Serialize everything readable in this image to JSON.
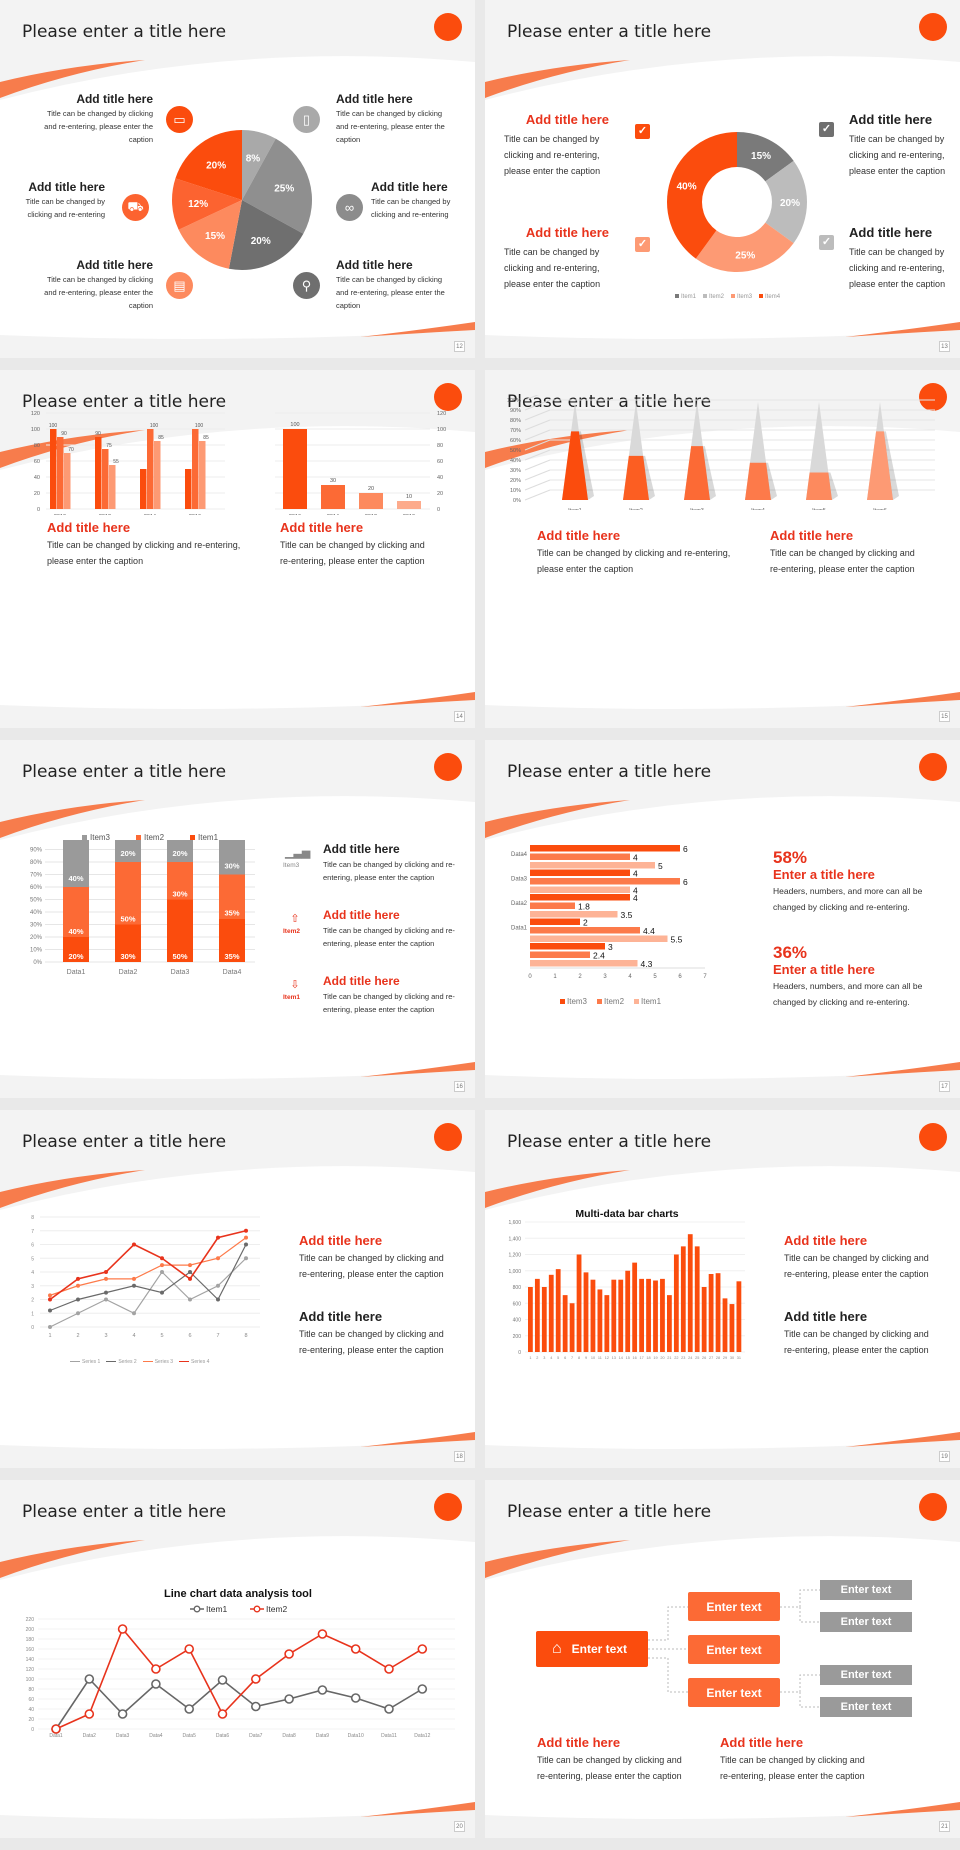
{
  "slide_title": "Please enter a title here",
  "add_title": "Add title here",
  "caption_long": "Title can be changed by clicking and re-entering, please enter the caption",
  "slides": [
    {
      "page": "12",
      "left_items": [
        {
          "title": "Add title here",
          "caption": "Title can be changed by clicking and re-entering, please enter the caption",
          "icon": "monitor-icon",
          "color": "#fb4c0d"
        },
        {
          "title": "Add title here",
          "caption": "Title can be changed by clicking and re-entering",
          "icon": "car-icon",
          "color": "#fc6330"
        },
        {
          "title": "Add title here",
          "caption": "Title can be changed by clicking and re-entering, please enter the caption",
          "icon": "book-icon",
          "color": "#fd8a5e"
        }
      ],
      "right_items": [
        {
          "title": "Add title here",
          "caption": "Title can be changed by clicking and re-entering, please enter the caption",
          "icon": "phone-icon",
          "color": "#a9a9a9"
        },
        {
          "title": "Add title here",
          "caption": "Title can be changed by clicking and re-entering",
          "icon": "binoculars-icon",
          "color": "#8c8c8c"
        },
        {
          "title": "Add title here",
          "caption": "Title can be changed by clicking and re-entering, please enter the caption",
          "icon": "bicycle-icon",
          "color": "#6f6f6f"
        }
      ]
    },
    {
      "page": "13",
      "items": [
        {
          "title": "Add title here",
          "caption": "Title can be changed by clicking and re-entering, please enter the caption"
        },
        {
          "title": "Add title here",
          "caption": "Title can be changed by clicking and re-entering, please enter the caption"
        },
        {
          "title": "Add title here",
          "caption": "Title can be changed by clicking and re-entering, please enter the caption"
        },
        {
          "title": "Add title here",
          "caption": "Title can be changed by clicking and re-entering, please enter the caption"
        }
      ]
    },
    {
      "page": "14",
      "texts": [
        {
          "title": "Add title here",
          "caption": "Title can be changed by clicking and re-entering, please enter the caption"
        },
        {
          "title": "Add title here",
          "caption": "Title can be changed by clicking and re-entering, please enter the caption"
        }
      ]
    },
    {
      "page": "15",
      "texts": [
        {
          "title": "Add title here",
          "caption": "Title can be changed by clicking and re-entering, please enter the caption"
        },
        {
          "title": "Add title here",
          "caption": "Title can be changed by clicking and re-entering, please enter the caption"
        }
      ]
    },
    {
      "page": "16",
      "items": [
        {
          "label": "Item3",
          "title": "Add title here",
          "caption": "Title can be changed by clicking and re-entering, please enter the caption",
          "icon": "bar-chart-icon"
        },
        {
          "label": "Item2",
          "title": "Add title here",
          "caption": "Title can be changed by clicking and re-entering, please enter the caption",
          "icon": "upload-icon"
        },
        {
          "label": "Item1",
          "title": "Add title here",
          "caption": "Title can be changed by clicking and re-entering, please enter the caption",
          "icon": "download-icon"
        }
      ]
    },
    {
      "page": "17",
      "stats": [
        {
          "value": "58%",
          "title": "Enter a title here",
          "caption": "Headers, numbers, and more can all be changed by clicking and re-entering."
        },
        {
          "value": "36%",
          "title": "Enter a title here",
          "caption": "Headers, numbers, and more can all be changed by clicking and re-entering."
        }
      ]
    },
    {
      "page": "18",
      "texts": [
        {
          "title": "Add title here",
          "caption": "Title can be changed by clicking and re-entering, please enter the caption"
        },
        {
          "title": "Add title here",
          "caption": "Title can be changed by clicking and re-entering, please enter the caption"
        }
      ]
    },
    {
      "page": "19",
      "texts": [
        {
          "title": "Add title here",
          "caption": "Title can be changed by clicking and re-entering, please enter the caption"
        },
        {
          "title": "Add title here",
          "caption": "Title can be changed by clicking and re-entering, please enter the caption"
        }
      ]
    },
    {
      "page": "20"
    },
    {
      "page": "21",
      "root": "Enter text",
      "mid": [
        "Enter text",
        "Enter text",
        "Enter text"
      ],
      "leaf": [
        "Enter text",
        "Enter text",
        "Enter text",
        "Enter text"
      ],
      "texts": [
        {
          "title": "Add title here",
          "caption": "Title can be changed by clicking and re-entering, please enter the caption"
        },
        {
          "title": "Add title here",
          "caption": "Title can be changed by clicking and re-entering, please enter the caption"
        }
      ]
    }
  ],
  "colors": {
    "accent": "#fb4c0d",
    "orange2": "#fc6a35",
    "orange3": "#fd9a74",
    "grey_dark": "#6f6f6f",
    "grey": "#9a9a9a",
    "grey_light": "#c8c8c8"
  },
  "chart_data": [
    {
      "type": "pie",
      "slide": 12,
      "labels": [
        "8%",
        "25%",
        "20%",
        "15%",
        "12%",
        "20%"
      ],
      "values": [
        8,
        25,
        20,
        15,
        12,
        20
      ],
      "colors": [
        "#a9a9a9",
        "#8f8f8f",
        "#6f6f6f",
        "#fd8a5e",
        "#fc6330",
        "#fb4c0d"
      ]
    },
    {
      "type": "pie",
      "slide": 13,
      "donut": true,
      "categories": [
        "Item1",
        "Item2",
        "Item3",
        "Item4"
      ],
      "values": [
        15,
        20,
        25,
        40
      ],
      "labels": [
        "15%",
        "20%",
        "25%",
        "40%"
      ]
    },
    {
      "type": "bar",
      "slide": 14,
      "categories": [
        "2010",
        "2012",
        "2014",
        "2016"
      ],
      "series": [
        {
          "name": "S1",
          "values": [
            100,
            90,
            50,
            50
          ]
        },
        {
          "name": "S2",
          "values": [
            90,
            75,
            100,
            100
          ]
        },
        {
          "name": "S3",
          "values": [
            70,
            55,
            85,
            85
          ]
        }
      ],
      "ylim": [
        0,
        120
      ],
      "yticks": [
        "0",
        "20",
        "40",
        "60",
        "80",
        "100",
        "120"
      ]
    },
    {
      "type": "bar",
      "slide": 14,
      "categories": [
        "2016",
        "2014",
        "2012",
        "2010"
      ],
      "values": [
        100,
        30,
        20,
        10
      ],
      "ylim": [
        0,
        120
      ],
      "yticks": [
        "0",
        "20",
        "40",
        "60",
        "80",
        "100",
        "120"
      ]
    },
    {
      "type": "bar",
      "slide": 15,
      "subtype": "3d-pyramid",
      "categories": [
        "Item1",
        "Item2",
        "Item3",
        "Item4",
        "Item5",
        "Item6"
      ],
      "values": [
        70,
        45,
        55,
        38,
        28,
        70
      ],
      "ylim": [
        0,
        100
      ],
      "yticks": [
        "0%",
        "10%",
        "20%",
        "30%",
        "40%",
        "50%",
        "60%",
        "70%",
        "80%",
        "90%",
        "100%"
      ]
    },
    {
      "type": "bar",
      "slide": 16,
      "subtype": "stacked-100",
      "categories": [
        "Data1",
        "Data2",
        "Data3",
        "Data4"
      ],
      "series": [
        {
          "name": "Item1",
          "values": [
            20,
            30,
            50,
            35
          ]
        },
        {
          "name": "Item2",
          "values": [
            40,
            50,
            30,
            35
          ]
        },
        {
          "name": "Item3",
          "values": [
            40,
            20,
            20,
            30
          ]
        }
      ],
      "legend": [
        "Item3",
        "Item2",
        "Item1"
      ],
      "yticks": [
        "0%",
        "10%",
        "20%",
        "30%",
        "40%",
        "50%",
        "60%",
        "70%",
        "80%",
        "90%",
        "100%"
      ]
    },
    {
      "type": "bar",
      "slide": 17,
      "subtype": "horizontal",
      "categories": [
        "",
        "Data1",
        "Data2",
        "Data3",
        "Data4"
      ],
      "series": [
        {
          "name": "Item3",
          "values": [
            3,
            2,
            4,
            4,
            6
          ]
        },
        {
          "name": "Item2",
          "values": [
            2.4,
            4.4,
            1.8,
            6,
            4
          ]
        },
        {
          "name": "Item1",
          "values": [
            4.3,
            5.5,
            3.5,
            4,
            5
          ]
        }
      ],
      "xticks": [
        "0",
        "1",
        "2",
        "3",
        "4",
        "5",
        "6",
        "7"
      ],
      "legend": [
        "Item3",
        "Item2",
        "Item1"
      ]
    },
    {
      "type": "line",
      "slide": 18,
      "x": [
        1,
        2,
        3,
        4,
        5,
        6,
        7,
        8
      ],
      "series": [
        {
          "name": "Series 1",
          "values": [
            0,
            1,
            2,
            1,
            4,
            2,
            3,
            5
          ]
        },
        {
          "name": "Series 2",
          "values": [
            1.2,
            2,
            2.5,
            3,
            2.5,
            4,
            2,
            6
          ]
        },
        {
          "name": "Series 3",
          "values": [
            2.3,
            3,
            3.5,
            3.5,
            4.5,
            4.5,
            5,
            6.5
          ]
        },
        {
          "name": "Series 4",
          "values": [
            2,
            3.5,
            4,
            6,
            5,
            3.5,
            6.5,
            7
          ]
        }
      ],
      "ylim": [
        0,
        8
      ]
    },
    {
      "type": "bar",
      "slide": 19,
      "title": "Multi-data bar charts",
      "categories": [
        "1",
        "2",
        "3",
        "4",
        "5",
        "6",
        "7",
        "8",
        "9",
        "10",
        "11",
        "12",
        "13",
        "14",
        "15",
        "16",
        "17",
        "18",
        "19",
        "20",
        "21",
        "22",
        "23",
        "24",
        "25",
        "26",
        "27",
        "28",
        "29",
        "30",
        "31"
      ],
      "values": [
        800,
        900,
        800,
        950,
        1020,
        700,
        600,
        1200,
        980,
        890,
        770,
        700,
        890,
        890,
        1000,
        1100,
        900,
        900,
        880,
        900,
        700,
        1200,
        1300,
        1450,
        1300,
        800,
        960,
        970,
        660,
        590,
        870
      ],
      "ylim": [
        0,
        1600
      ],
      "yticks": [
        "0",
        "200",
        "400",
        "600",
        "800",
        "1,000",
        "1,200",
        "1,400",
        "1,600"
      ]
    },
    {
      "type": "line",
      "slide": 20,
      "title": "Line chart data analysis tool",
      "categories": [
        "Data1",
        "Data2",
        "Data3",
        "Data4",
        "Data5",
        "Data6",
        "Data7",
        "Data8",
        "Data9",
        "Data10",
        "Data11",
        "Data12"
      ],
      "series": [
        {
          "name": "Item1",
          "values": [
            0,
            100,
            30,
            90,
            40,
            98,
            45,
            60,
            78,
            62,
            40,
            80
          ]
        },
        {
          "name": "Item2",
          "values": [
            0,
            30,
            200,
            120,
            160,
            30,
            100,
            150,
            190,
            160,
            120,
            160
          ]
        }
      ],
      "ylim": [
        0,
        220
      ],
      "yticks": [
        "0",
        "20",
        "40",
        "60",
        "80",
        "100",
        "120",
        "140",
        "160",
        "180",
        "200",
        "220"
      ]
    }
  ]
}
